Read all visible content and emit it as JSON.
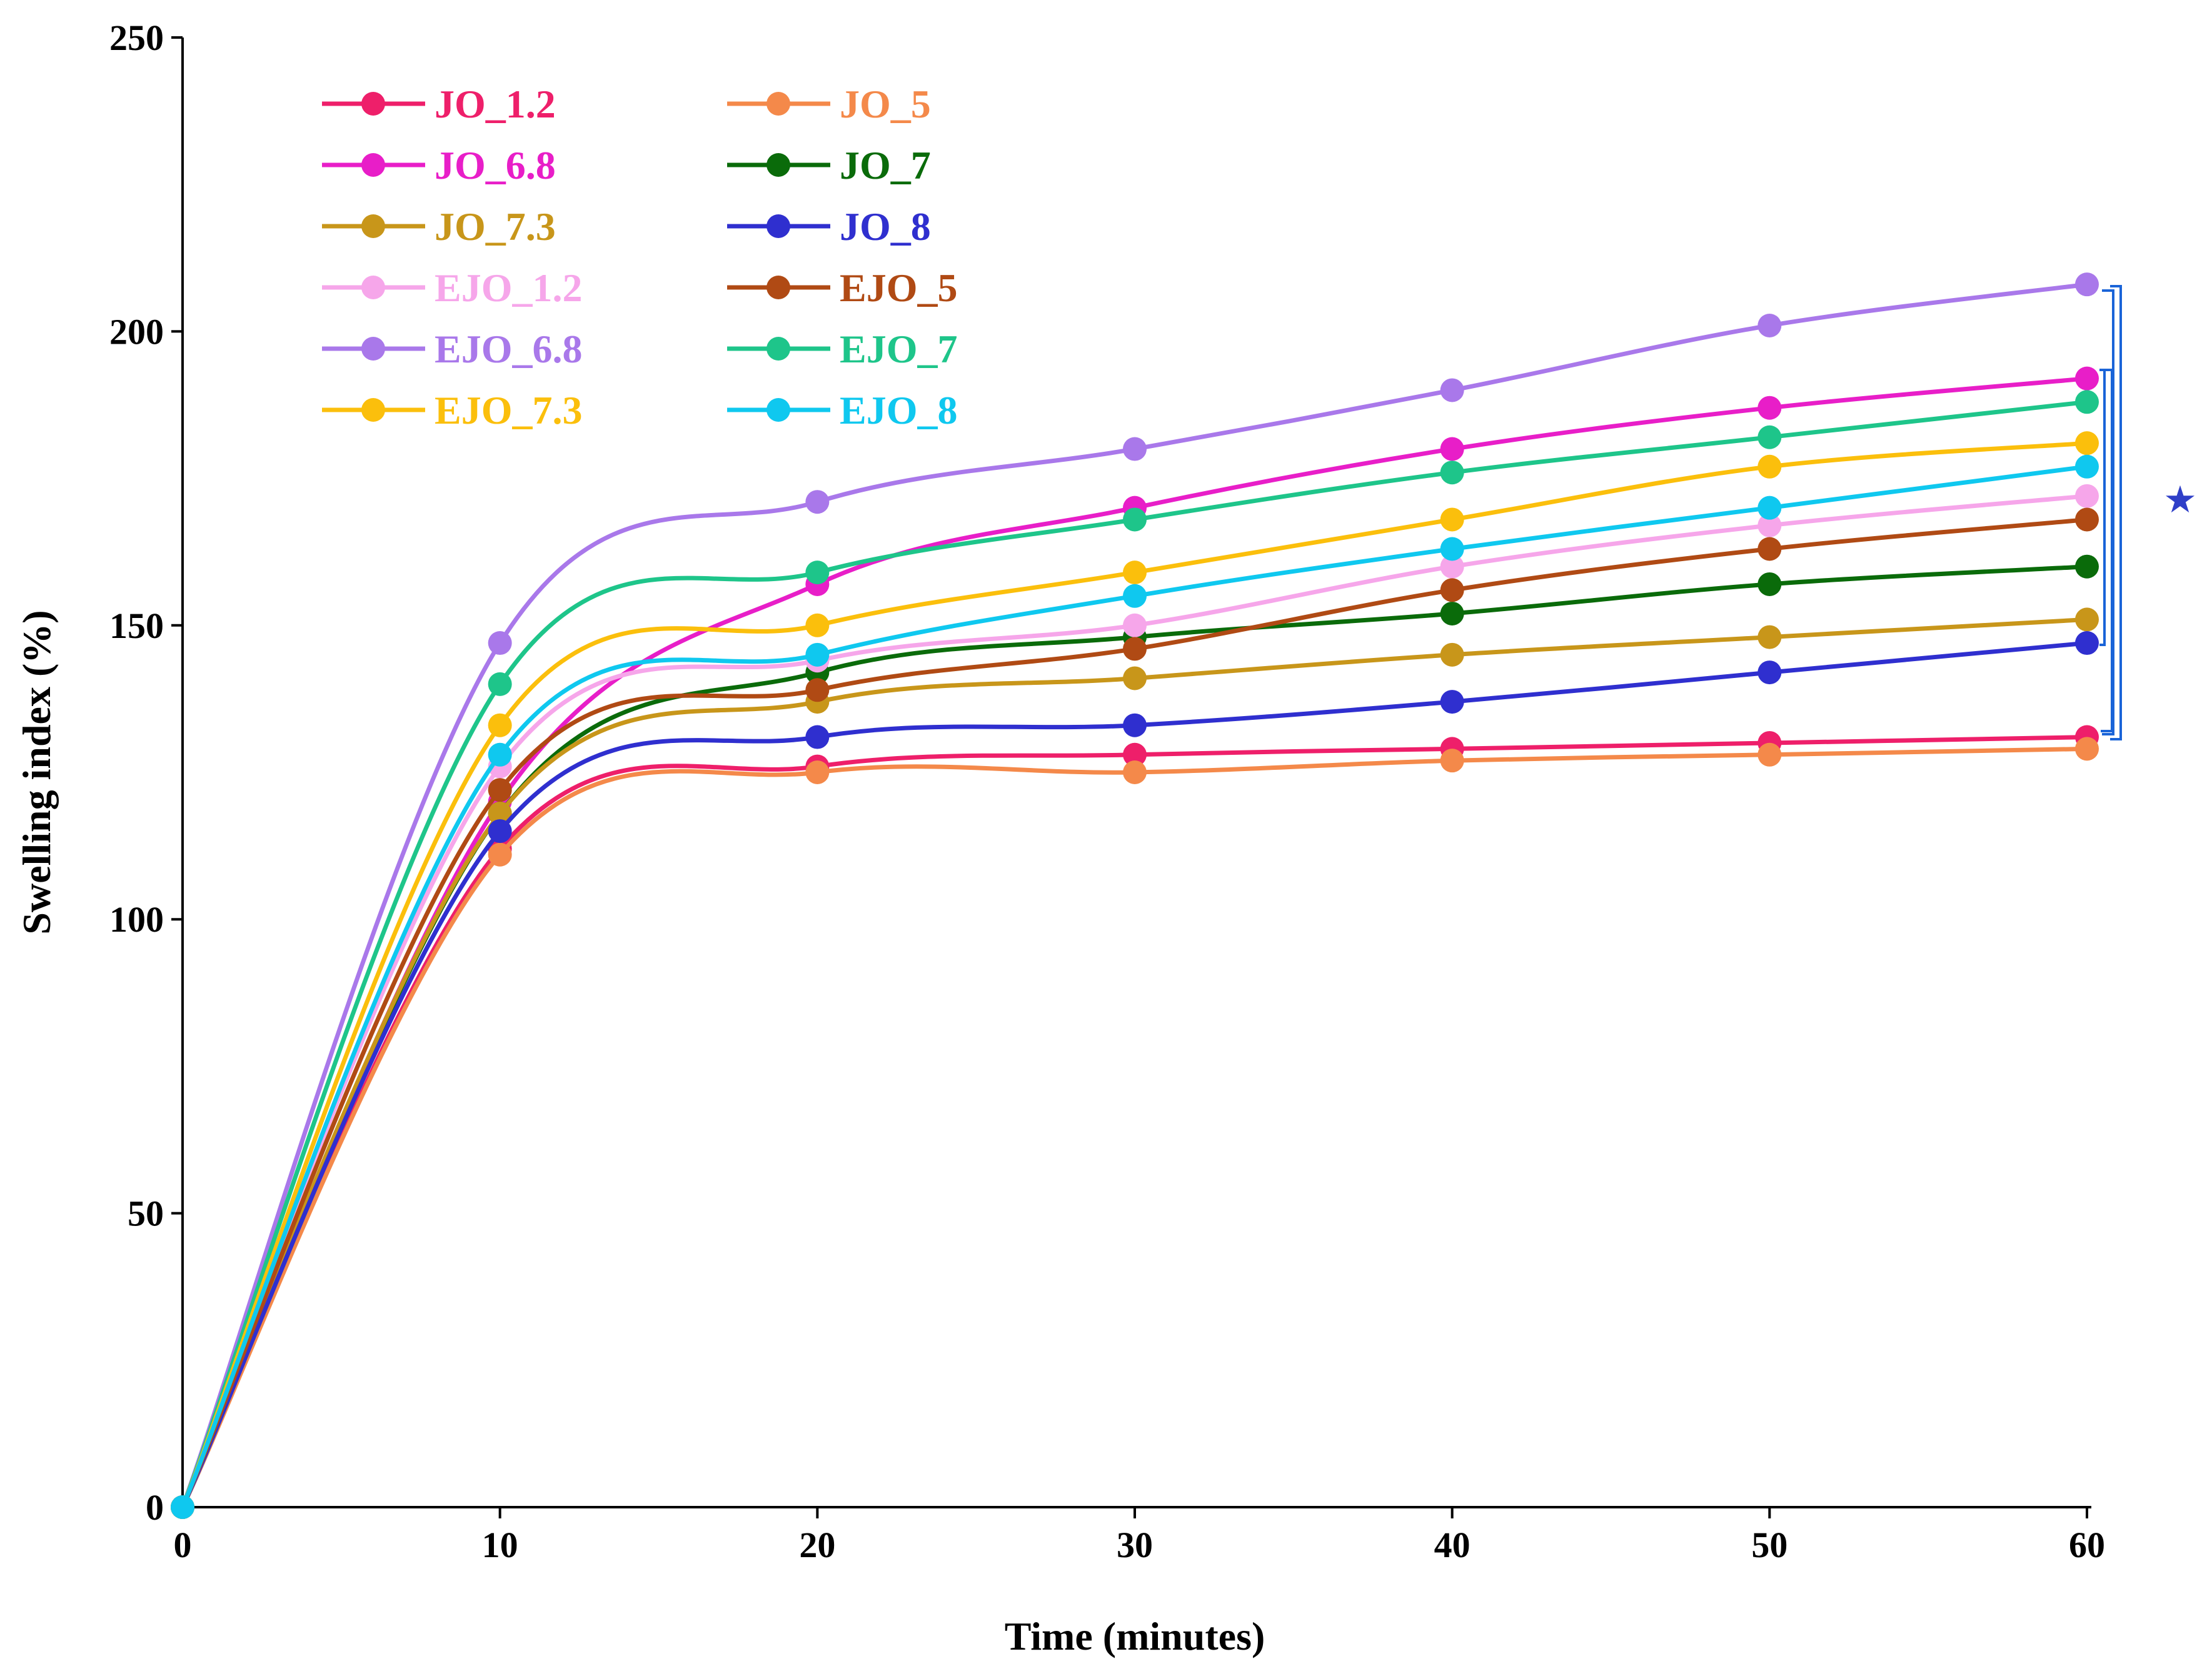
{
  "chart_data": {
    "type": "line",
    "title": "",
    "xlabel": "Time (minutes)",
    "ylabel": "Swelling index  (%)",
    "x": [
      0,
      10,
      20,
      30,
      40,
      50,
      60
    ],
    "xlim": [
      0,
      60
    ],
    "ylim": [
      0,
      250
    ],
    "xticks": [
      0,
      10,
      20,
      30,
      40,
      50,
      60
    ],
    "yticks": [
      0,
      50,
      100,
      150,
      200,
      250
    ],
    "grid": false,
    "legend_position": "top-left",
    "annotation": "★",
    "series": [
      {
        "name": "JO_1.2",
        "color": "#ee1f6a",
        "values": [
          0,
          112,
          126,
          128,
          129,
          130,
          131
        ]
      },
      {
        "name": "JO_5",
        "color": "#f4894a",
        "values": [
          0,
          111,
          125,
          125,
          127,
          128,
          129
        ]
      },
      {
        "name": "JO_6.8",
        "color": "#e81ec8",
        "values": [
          0,
          120,
          157,
          170,
          180,
          187,
          192
        ]
      },
      {
        "name": "JO_7",
        "color": "#0a6b0a",
        "values": [
          0,
          118,
          142,
          148,
          152,
          157,
          160
        ]
      },
      {
        "name": "JO_7.3",
        "color": "#c8961a",
        "values": [
          0,
          118,
          137,
          141,
          145,
          148,
          151
        ]
      },
      {
        "name": "JO_8",
        "color": "#2f2fcf",
        "values": [
          0,
          115,
          131,
          133,
          137,
          142,
          147
        ]
      },
      {
        "name": "EJO_1.2",
        "color": "#f6a6ea",
        "values": [
          0,
          126,
          144,
          150,
          160,
          167,
          172
        ]
      },
      {
        "name": "EJO_5",
        "color": "#b04a14",
        "values": [
          0,
          122,
          139,
          146,
          156,
          163,
          168
        ]
      },
      {
        "name": "EJO_6.8",
        "color": "#a978ea",
        "values": [
          0,
          147,
          171,
          180,
          190,
          201,
          208
        ]
      },
      {
        "name": "EJO_7",
        "color": "#1ec58a",
        "values": [
          0,
          140,
          159,
          168,
          176,
          182,
          188
        ]
      },
      {
        "name": "EJO_7.3",
        "color": "#fbbf0c",
        "values": [
          0,
          133,
          150,
          159,
          168,
          177,
          181
        ]
      },
      {
        "name": "EJO_8",
        "color": "#0fc8ef",
        "values": [
          0,
          128,
          145,
          155,
          163,
          170,
          177
        ]
      }
    ]
  }
}
